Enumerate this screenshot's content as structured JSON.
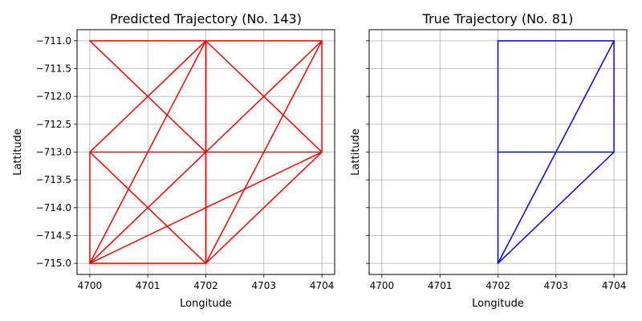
{
  "chart_data": [
    {
      "type": "line",
      "title": "Predicted Trajectory (No. 143)",
      "xlabel": "Longitude",
      "ylabel": "Lattitude",
      "xlim": [
        4699.78,
        4704.22
      ],
      "ylim": [
        -715.2,
        -710.8
      ],
      "xticks": [
        4700,
        4701,
        4702,
        4703,
        4704
      ],
      "yticks": [
        -711.0,
        -711.5,
        -712.0,
        -712.5,
        -713.0,
        -713.5,
        -714.0,
        -714.5,
        -715.0
      ],
      "xtick_labels": [
        "4700",
        "4701",
        "4702",
        "4703",
        "4704"
      ],
      "ytick_labels": [
        "−711.0",
        "−711.5",
        "−712.0",
        "−712.5",
        "−713.0",
        "−713.5",
        "−714.0",
        "−714.5",
        "−715.0"
      ],
      "grid": true,
      "color": "#ff0000",
      "segments": [
        [
          [
            4700,
            -711
          ],
          [
            4702,
            -711
          ]
        ],
        [
          [
            4702,
            -711
          ],
          [
            4704,
            -711
          ]
        ],
        [
          [
            4700,
            -711
          ],
          [
            4702,
            -713
          ]
        ],
        [
          [
            4702,
            -711
          ],
          [
            4704,
            -713
          ]
        ],
        [
          [
            4702,
            -711
          ],
          [
            4700,
            -713
          ]
        ],
        [
          [
            4704,
            -711
          ],
          [
            4702,
            -713
          ]
        ],
        [
          [
            4702,
            -711
          ],
          [
            4702,
            -713
          ]
        ],
        [
          [
            4704,
            -711
          ],
          [
            4704,
            -713
          ]
        ],
        [
          [
            4700,
            -713
          ],
          [
            4702,
            -713
          ]
        ],
        [
          [
            4702,
            -713
          ],
          [
            4704,
            -713
          ]
        ],
        [
          [
            4700,
            -713
          ],
          [
            4700,
            -715
          ]
        ],
        [
          [
            4700,
            -713
          ],
          [
            4702,
            -715
          ]
        ],
        [
          [
            4702,
            -713
          ],
          [
            4700,
            -715
          ]
        ],
        [
          [
            4704,
            -713
          ],
          [
            4702,
            -715
          ]
        ],
        [
          [
            4702,
            -713
          ],
          [
            4702,
            -715
          ]
        ],
        [
          [
            4700,
            -715
          ],
          [
            4702,
            -715
          ]
        ],
        [
          [
            4702,
            -711
          ],
          [
            4700,
            -715
          ]
        ],
        [
          [
            4702,
            -711
          ],
          [
            4702,
            -715
          ]
        ],
        [
          [
            4704,
            -711
          ],
          [
            4702,
            -715
          ]
        ],
        [
          [
            4704,
            -713
          ],
          [
            4700,
            -715
          ]
        ]
      ]
    },
    {
      "type": "line",
      "title": "True Trajectory (No. 81)",
      "xlabel": "Longitude",
      "ylabel": "Lattitude",
      "xlim": [
        4699.78,
        4704.22
      ],
      "ylim": [
        -715.2,
        -710.8
      ],
      "xticks": [
        4700,
        4701,
        4702,
        4703,
        4704
      ],
      "yticks": [
        -711.0,
        -711.5,
        -712.0,
        -712.5,
        -713.0,
        -713.5,
        -714.0,
        -714.5,
        -715.0
      ],
      "xtick_labels": [
        "4700",
        "4701",
        "4702",
        "4703",
        "4704"
      ],
      "ytick_labels": [],
      "grid": true,
      "color": "#0000ff",
      "segments": [
        [
          [
            4702,
            -711
          ],
          [
            4704,
            -711
          ]
        ],
        [
          [
            4702,
            -711
          ],
          [
            4702,
            -713
          ]
        ],
        [
          [
            4704,
            -711
          ],
          [
            4704,
            -713
          ]
        ],
        [
          [
            4702,
            -713
          ],
          [
            4704,
            -713
          ]
        ],
        [
          [
            4702,
            -713
          ],
          [
            4702,
            -715
          ]
        ],
        [
          [
            4704,
            -711
          ],
          [
            4702,
            -715
          ]
        ],
        [
          [
            4704,
            -713
          ],
          [
            4702,
            -715
          ]
        ]
      ]
    }
  ]
}
